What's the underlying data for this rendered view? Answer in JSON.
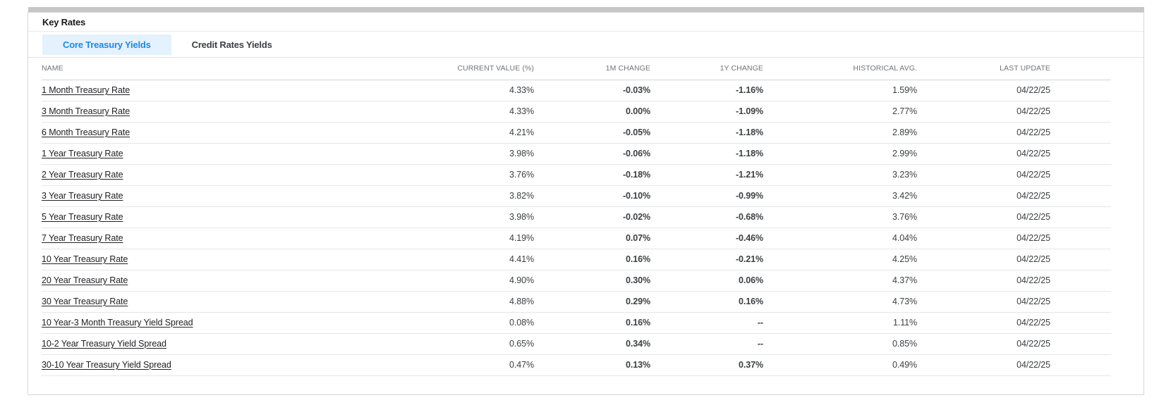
{
  "panel": {
    "title": "Key Rates"
  },
  "tabs": [
    {
      "label": "Core Treasury Yields",
      "active": true
    },
    {
      "label": "Credit Rates Yields",
      "active": false
    }
  ],
  "table": {
    "columns": [
      "NAME",
      "CURRENT VALUE (%)",
      "1M CHANGE",
      "1Y CHANGE",
      "HISTORICAL AVG.",
      "LAST UPDATE"
    ],
    "rows": [
      {
        "name": "1 Month Treasury Rate",
        "current": "4.33%",
        "change_1m": "-0.03%",
        "change_1y": "-1.16%",
        "historical_avg": "1.59%",
        "last_update": "04/22/25"
      },
      {
        "name": "3 Month Treasury Rate",
        "current": "4.33%",
        "change_1m": "0.00%",
        "change_1y": "-1.09%",
        "historical_avg": "2.77%",
        "last_update": "04/22/25"
      },
      {
        "name": "6 Month Treasury Rate",
        "current": "4.21%",
        "change_1m": "-0.05%",
        "change_1y": "-1.18%",
        "historical_avg": "2.89%",
        "last_update": "04/22/25"
      },
      {
        "name": "1 Year Treasury Rate",
        "current": "3.98%",
        "change_1m": "-0.06%",
        "change_1y": "-1.18%",
        "historical_avg": "2.99%",
        "last_update": "04/22/25"
      },
      {
        "name": "2 Year Treasury Rate",
        "current": "3.76%",
        "change_1m": "-0.18%",
        "change_1y": "-1.21%",
        "historical_avg": "3.23%",
        "last_update": "04/22/25"
      },
      {
        "name": "3 Year Treasury Rate",
        "current": "3.82%",
        "change_1m": "-0.10%",
        "change_1y": "-0.99%",
        "historical_avg": "3.42%",
        "last_update": "04/22/25"
      },
      {
        "name": "5 Year Treasury Rate",
        "current": "3.98%",
        "change_1m": "-0.02%",
        "change_1y": "-0.68%",
        "historical_avg": "3.76%",
        "last_update": "04/22/25"
      },
      {
        "name": "7 Year Treasury Rate",
        "current": "4.19%",
        "change_1m": "0.07%",
        "change_1y": "-0.46%",
        "historical_avg": "4.04%",
        "last_update": "04/22/25"
      },
      {
        "name": "10 Year Treasury Rate",
        "current": "4.41%",
        "change_1m": "0.16%",
        "change_1y": "-0.21%",
        "historical_avg": "4.25%",
        "last_update": "04/22/25"
      },
      {
        "name": "20 Year Treasury Rate",
        "current": "4.90%",
        "change_1m": "0.30%",
        "change_1y": "0.06%",
        "historical_avg": "4.37%",
        "last_update": "04/22/25"
      },
      {
        "name": "30 Year Treasury Rate",
        "current": "4.88%",
        "change_1m": "0.29%",
        "change_1y": "0.16%",
        "historical_avg": "4.73%",
        "last_update": "04/22/25"
      },
      {
        "name": "10 Year-3 Month Treasury Yield Spread",
        "current": "0.08%",
        "change_1m": "0.16%",
        "change_1y": "--",
        "historical_avg": "1.11%",
        "last_update": "04/22/25"
      },
      {
        "name": "10-2 Year Treasury Yield Spread",
        "current": "0.65%",
        "change_1m": "0.34%",
        "change_1y": "--",
        "historical_avg": "0.85%",
        "last_update": "04/22/25"
      },
      {
        "name": "30-10 Year Treasury Yield Spread",
        "current": "0.47%",
        "change_1m": "0.13%",
        "change_1y": "0.37%",
        "historical_avg": "0.49%",
        "last_update": "04/22/25"
      }
    ]
  },
  "colors": {
    "positive": "#2e9e44",
    "negative": "#d32f2f",
    "neutral": "#5f6368",
    "tab_active_bg": "#e3f2fd",
    "tab_active_text": "#1e88e5"
  }
}
